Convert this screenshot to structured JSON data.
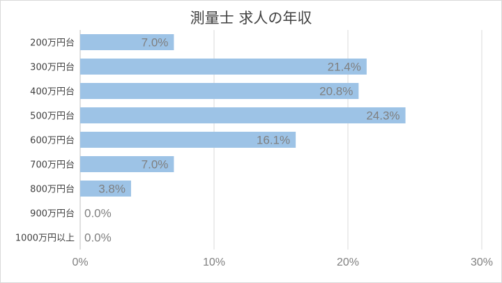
{
  "chart_data": {
    "type": "bar",
    "orientation": "horizontal",
    "title": "測量士 求人の年収",
    "categories": [
      "200万円台",
      "300万円台",
      "400万円台",
      "500万円台",
      "600万円台",
      "700万円台",
      "800万円台",
      "900万円台",
      "1000万円以上"
    ],
    "values": [
      7.0,
      21.4,
      20.8,
      24.3,
      16.1,
      7.0,
      3.8,
      0.0,
      0.0
    ],
    "value_labels": [
      "7.0%",
      "21.4%",
      "20.8%",
      "24.3%",
      "16.1%",
      "7.0%",
      "3.8%",
      "0.0%",
      "0.0%"
    ],
    "xlim": [
      0,
      30
    ],
    "xticks": [
      0,
      10,
      20,
      30
    ],
    "xtick_labels": [
      "0%",
      "10%",
      "20%",
      "30%"
    ],
    "grid": true,
    "legend": "none",
    "bar_color": "#9dc3e6",
    "grid_color": "#d9d9d9"
  }
}
